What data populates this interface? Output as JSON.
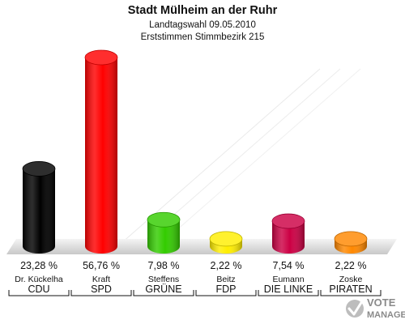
{
  "header": {
    "title": "Stadt Mülheim an der Ruhr",
    "subtitle1": "Landtagswahl 09.05.2010",
    "subtitle2": "Erststimmen Stimmbezirk 215"
  },
  "logo": {
    "line1": "VOTE",
    "line2": "MANAGER"
  },
  "chart_data": {
    "type": "bar",
    "title": "Stadt Mülheim an der Ruhr",
    "subtitle": "Landtagswahl 09.05.2010 / Erststimmen Stimmbezirk 215",
    "categories": [
      "CDU",
      "SPD",
      "GRÜNE",
      "FDP",
      "DIE LINKE",
      "PIRATEN"
    ],
    "candidates": [
      "Dr. Kückelha",
      "Kraft",
      "Steffens",
      "Beitz",
      "Eumann",
      "Zoske"
    ],
    "values": [
      23.28,
      56.76,
      7.98,
      2.22,
      7.54,
      2.22
    ],
    "value_labels": [
      "23,28 %",
      "56,76 %",
      "7,98 %",
      "2,22 %",
      "7,54 %",
      "2,22 %"
    ],
    "colors": [
      "#000000",
      "#ff0000",
      "#33cc00",
      "#ffee00",
      "#cc0044",
      "#ff8800"
    ],
    "unit": "%",
    "ylim": [
      0,
      60
    ],
    "grid": false,
    "legend": "none"
  }
}
